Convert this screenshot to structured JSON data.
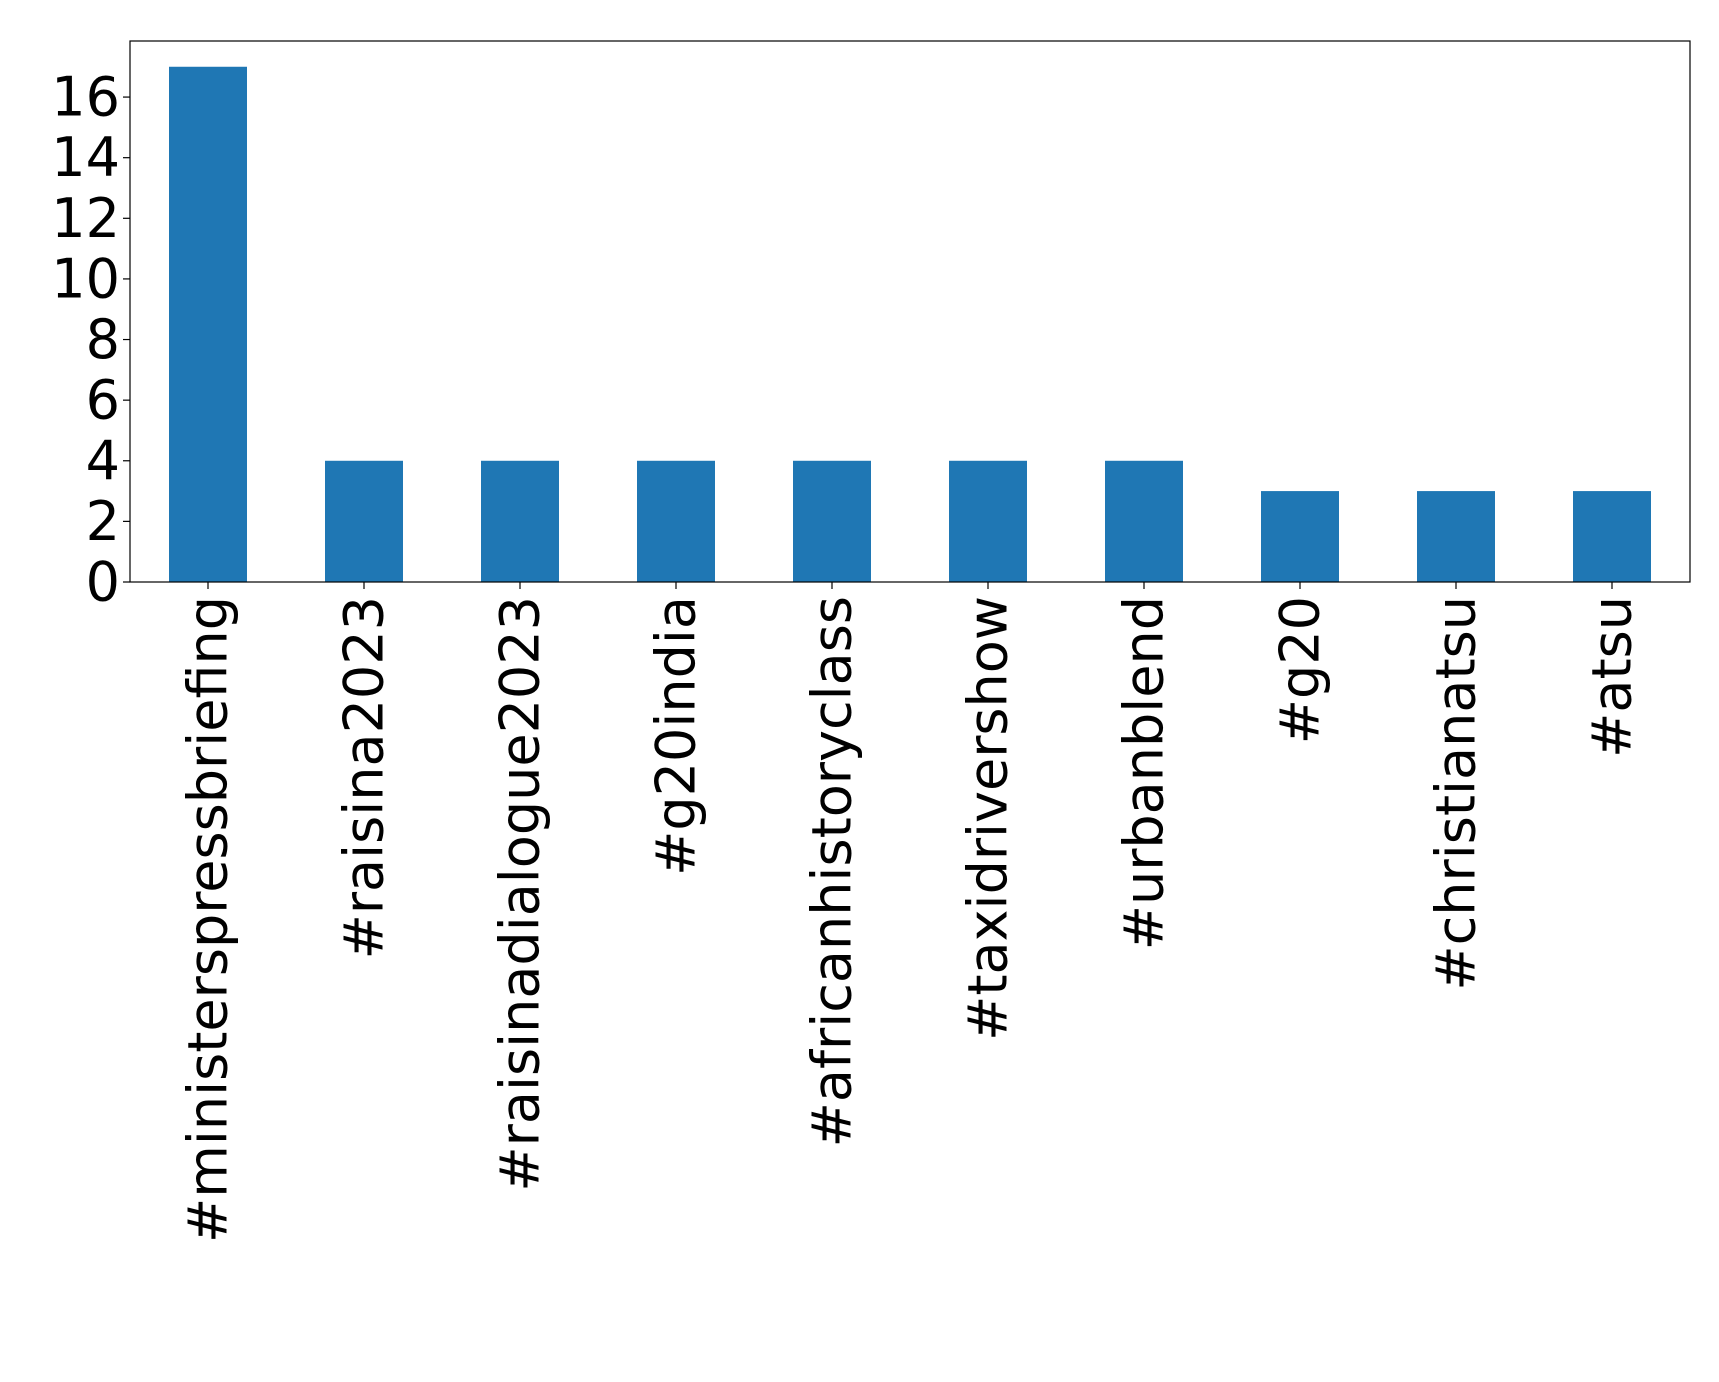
{
  "chart_data": {
    "type": "bar",
    "title": "",
    "xlabel": "",
    "ylabel": "",
    "categories": [
      "#ministerspressbriefing",
      "#raisina2023",
      "#raisinadialogue2023",
      "#g20india",
      "#africanhistoryclass",
      "#taxidrivershow",
      "#urbanblend",
      "#g20",
      "#christianatsu",
      "#atsu"
    ],
    "values": [
      17,
      4,
      4,
      4,
      4,
      4,
      4,
      3,
      3,
      3
    ],
    "ylim": [
      0,
      17.85
    ],
    "yticks": [
      0,
      2,
      4,
      6,
      8,
      10,
      12,
      14,
      16
    ],
    "bar_color": "#1f77b4",
    "legend": "none",
    "grid": false
  }
}
